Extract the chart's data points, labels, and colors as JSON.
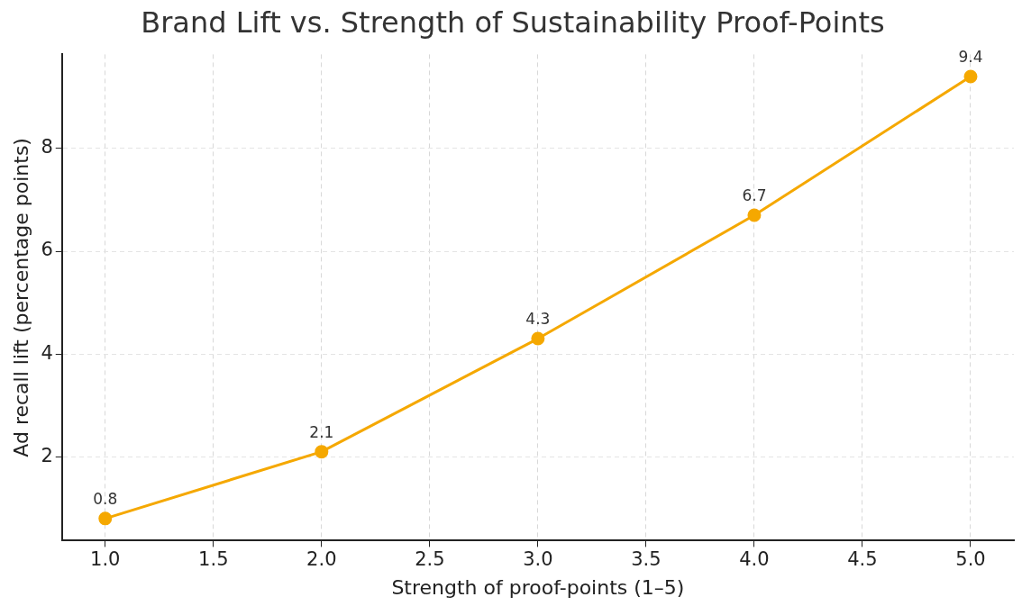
{
  "chart_data": {
    "type": "line",
    "title": "Brand Lift vs. Strength of Sustainability Proof-Points",
    "xlabel": "Strength of proof-points (1–5)",
    "ylabel": "Ad recall lift (percentage points)",
    "x": [
      1,
      2,
      3,
      4,
      5
    ],
    "series": [
      {
        "color": "#f5a800",
        "values": [
          0.8,
          2.1,
          4.3,
          6.7,
          9.4
        ]
      }
    ],
    "xlim": [
      0.8,
      5.2
    ],
    "xticks": [
      {
        "value": 1,
        "label": "1.0"
      },
      {
        "value": 1.5,
        "label": "1.5"
      },
      {
        "value": 2,
        "label": "2.0"
      },
      {
        "value": 2.5,
        "label": "2.5"
      },
      {
        "value": 3,
        "label": "3.0"
      },
      {
        "value": 3.5,
        "label": "3.5"
      },
      {
        "value": 4,
        "label": "4.0"
      },
      {
        "value": 4.5,
        "label": "4.5"
      },
      {
        "value": 5,
        "label": "5.0"
      }
    ],
    "ylim": [
      0.37,
      9.83
    ],
    "yticks": [
      2,
      4,
      6,
      8
    ],
    "grid": true,
    "legend": false,
    "marker": "circle",
    "line_style": "solid",
    "data_labels": true
  }
}
